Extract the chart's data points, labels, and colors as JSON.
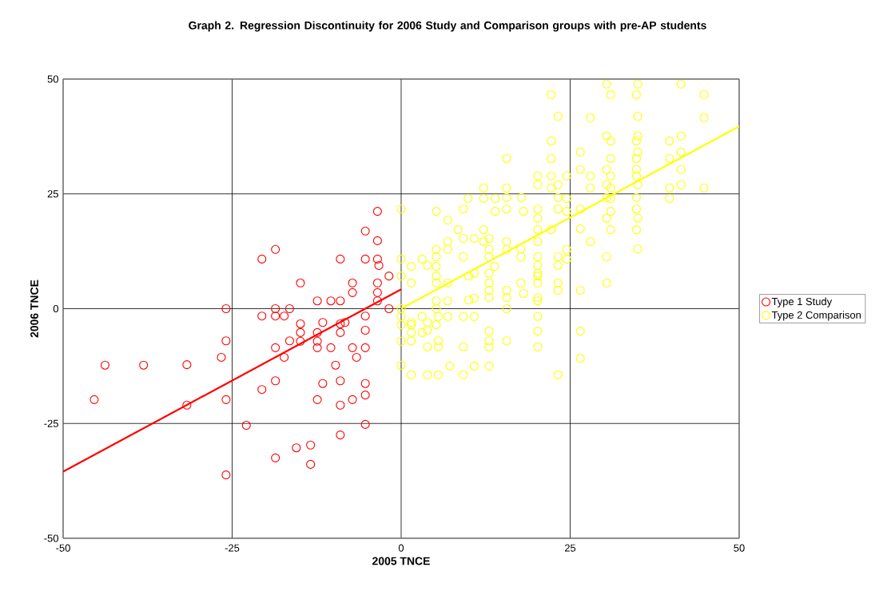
{
  "chart_data": {
    "type": "scatter",
    "title": "Graph 2. Regression Discontinuity for 2006 Study and Comparison groups with pre-AP students",
    "xlabel": "2005 TNCE",
    "ylabel": "2006 TNCE",
    "xlim": [
      -50,
      50
    ],
    "ylim": [
      -50,
      50
    ],
    "xticks": [
      -50,
      -25,
      0,
      25,
      50
    ],
    "yticks": [
      -50,
      -25,
      0,
      25,
      50
    ],
    "grid": true,
    "legend": "right",
    "series": [
      {
        "name": "Type 1 Study",
        "marker": "circle",
        "color": "#ff0000",
        "x": [
          -45.4,
          -43.8,
          -38.1,
          -31.7,
          -31.7,
          -26.6,
          -25.9,
          -25.9,
          -25.9,
          -25.9,
          -22.9,
          -20.6,
          -20.6,
          -20.6,
          -18.6,
          -18.6,
          -18.6,
          -18.6,
          -18.6,
          -18.6,
          -17.3,
          -17.3,
          -16.5,
          -16.5,
          -15.5,
          -14.9,
          -14.9,
          -14.9,
          -14.9,
          -13.4,
          -13.4,
          -12.4,
          -12.4,
          -12.4,
          -12.4,
          -12.4,
          -11.6,
          -11.6,
          -10.4,
          -10.4,
          -9.7,
          -9.0,
          -9.0,
          -9.0,
          -9.0,
          -9.0,
          -9.0,
          -9.0,
          -8.3,
          -7.2,
          -7.2,
          -7.2,
          -7.2,
          -6.6,
          -5.3,
          -5.3,
          -5.3,
          -5.3,
          -5.3,
          -5.3,
          -5.3,
          -5.3,
          -3.5,
          -3.5,
          -3.5,
          -3.5,
          -3.5,
          -3.5,
          -3.3,
          -1.8,
          -1.8
        ],
        "values": [
          -19.8,
          -12.3,
          -12.3,
          -12.2,
          -21,
          -10.6,
          0,
          -7,
          -19.8,
          -36.2,
          -25.4,
          10.8,
          -1.6,
          -17.6,
          12.9,
          0,
          -1.6,
          -8.5,
          -15.7,
          -32.5,
          -1.6,
          -10.6,
          0,
          -7,
          -30.3,
          5.6,
          -3.3,
          -5.2,
          -7.1,
          -29.7,
          -33.9,
          1.7,
          -5.2,
          -7.1,
          -8.5,
          -19.8,
          -3,
          -16.3,
          1.7,
          -8.5,
          -12.3,
          10.8,
          1.7,
          -3.3,
          -5.2,
          -15.7,
          -21,
          -27.5,
          -3,
          5.6,
          3.5,
          -8.5,
          -19.8,
          -10.6,
          16.9,
          10.8,
          -1.6,
          -4.7,
          -8.5,
          -16.3,
          -18.8,
          -25.2,
          21.2,
          14.8,
          10.8,
          5.6,
          3.5,
          1.7,
          9.4,
          7.1,
          0
        ]
      },
      {
        "name": "Type 2 Comparison",
        "marker": "circle",
        "color": "#ffff00",
        "x": [
          30.4,
          35.0,
          41.4,
          22.2,
          31.0,
          34.8,
          44.8,
          23.2,
          28.0,
          35.0,
          44.8,
          22.2,
          30.4,
          31.0,
          35.0,
          34.8,
          39.7,
          41.4,
          15.6,
          22.2,
          26.5,
          31.0,
          34.8,
          35.0,
          39.7,
          41.4,
          20.2,
          22.2,
          24.5,
          26.5,
          28.0,
          30.4,
          31.0,
          34.8,
          34.8,
          41.4,
          20.2,
          22.2,
          23.2,
          28.0,
          30.4,
          31.0,
          35.0,
          39.7,
          41.4,
          44.8,
          12.2,
          15.6,
          9.9,
          12.2,
          13.9,
          15.6,
          17.8,
          23.2,
          24.5,
          30.4,
          31.0,
          34.8,
          39.7,
          0,
          5.2,
          9.2,
          13.9,
          15.6,
          18.1,
          20.2,
          23.2,
          24.5,
          26.5,
          31.0,
          34.8,
          6.9,
          20.2,
          30.4,
          35.0,
          8.4,
          12.2,
          20.2,
          22.2,
          26.5,
          31.0,
          34.8,
          28.0,
          35.0,
          30.4,
          30.4,
          26.5,
          26.5,
          26.5,
          24.5,
          24.5,
          23.2,
          23.2,
          23.2,
          23.2,
          23.2,
          20.2,
          20.2,
          20.2,
          20.2,
          20.2,
          20.2,
          20.2,
          20.2,
          20.2,
          20.2,
          20.2,
          17.7,
          17.7,
          17.7,
          18.1,
          15.6,
          15.6,
          15.6,
          15.6,
          15.6,
          15.6,
          13.0,
          12.2,
          13.0,
          13.0,
          13.8,
          13.0,
          13.0,
          13.0,
          13.0,
          13.0,
          13.0,
          13.0,
          13.0,
          10.8,
          9.2,
          9.2,
          10.0,
          10.8,
          10.0,
          10.8,
          9.2,
          10.8,
          9.2,
          10.8,
          9.2,
          6.9,
          6.9,
          6.9,
          6.9,
          6.9,
          7.2,
          5.2,
          5.2,
          5.2,
          5.2,
          5.2,
          5.2,
          5.2,
          5.5,
          5.2,
          5.5,
          5.5,
          5.5,
          3.9,
          3.1,
          3.9,
          3.9,
          3.9,
          3.9,
          3.1,
          3.1,
          1.5,
          1.5,
          1.5,
          1.5,
          1.5,
          1.5,
          1.5,
          0,
          0,
          0,
          0,
          0,
          0,
          0
        ],
        "values": [
          48.9,
          48.9,
          48.9,
          46.6,
          46.6,
          46.6,
          46.6,
          41.9,
          41.6,
          41.9,
          41.6,
          36.5,
          37.6,
          36.5,
          37.6,
          36.5,
          36.5,
          37.6,
          32.7,
          32.7,
          34.1,
          32.7,
          32.7,
          34.1,
          32.7,
          34.1,
          28.9,
          28.9,
          28.9,
          30.3,
          28.9,
          30.3,
          28.9,
          30.3,
          28.9,
          30.3,
          27.0,
          26.3,
          27.0,
          26.3,
          27.0,
          26.3,
          27.0,
          26.3,
          27.0,
          26.3,
          26.3,
          26.3,
          24.0,
          24.0,
          24.0,
          24.2,
          24.2,
          24.2,
          24.0,
          24.2,
          24.0,
          24.2,
          24.0,
          21.7,
          21.2,
          21.7,
          21.2,
          21.7,
          21.2,
          21.7,
          21.7,
          21.2,
          21.7,
          21.2,
          21.7,
          19.3,
          19.7,
          19.7,
          19.7,
          17.2,
          17.2,
          17.2,
          17.2,
          17.4,
          17.2,
          17.2,
          14.6,
          13.0,
          11.3,
          5.6,
          4.0,
          -4.9,
          -10.8,
          12.9,
          10.8,
          11.3,
          9.4,
          5.6,
          4.0,
          -14.4,
          14.6,
          11.3,
          9.4,
          7.7,
          7.1,
          5.6,
          2.4,
          1.7,
          -1.7,
          -4.9,
          -8.3,
          13.0,
          11.3,
          5.6,
          3.3,
          14.6,
          12.9,
          4.0,
          2.4,
          0,
          -7.0,
          15.3,
          14.6,
          12.9,
          11.3,
          9.2,
          7.7,
          5.6,
          4.0,
          2.4,
          -4.9,
          -7.0,
          -8.3,
          -12.5,
          15.3,
          15.3,
          11.3,
          7.1,
          7.7,
          1.9,
          2.3,
          -1.7,
          -1.7,
          -8.3,
          -12.5,
          -14.4,
          14.6,
          12.9,
          5.6,
          1.7,
          -1.7,
          -12.5,
          12.9,
          11.3,
          9.2,
          7.1,
          5.6,
          1.7,
          0,
          -1.7,
          -3.5,
          -7.0,
          -8.3,
          -14.4,
          9.4,
          10.8,
          -3.0,
          -4.7,
          -8.3,
          -14.4,
          -1.7,
          -5.2,
          9.2,
          5.6,
          -3.0,
          -3.5,
          -5.2,
          -7.0,
          -14.4,
          10.8,
          7.1,
          0,
          -1.7,
          -3.5,
          -7.1,
          -12.3
        ]
      },
      {
        "type": "line",
        "marker": "none",
        "color": "#ff0000",
        "x": [
          -50,
          0
        ],
        "values": [
          -35.5,
          4.2
        ]
      },
      {
        "type": "line",
        "marker": "none",
        "color": "#ffff00",
        "x": [
          0,
          50
        ],
        "values": [
          0,
          39.7
        ]
      }
    ]
  }
}
